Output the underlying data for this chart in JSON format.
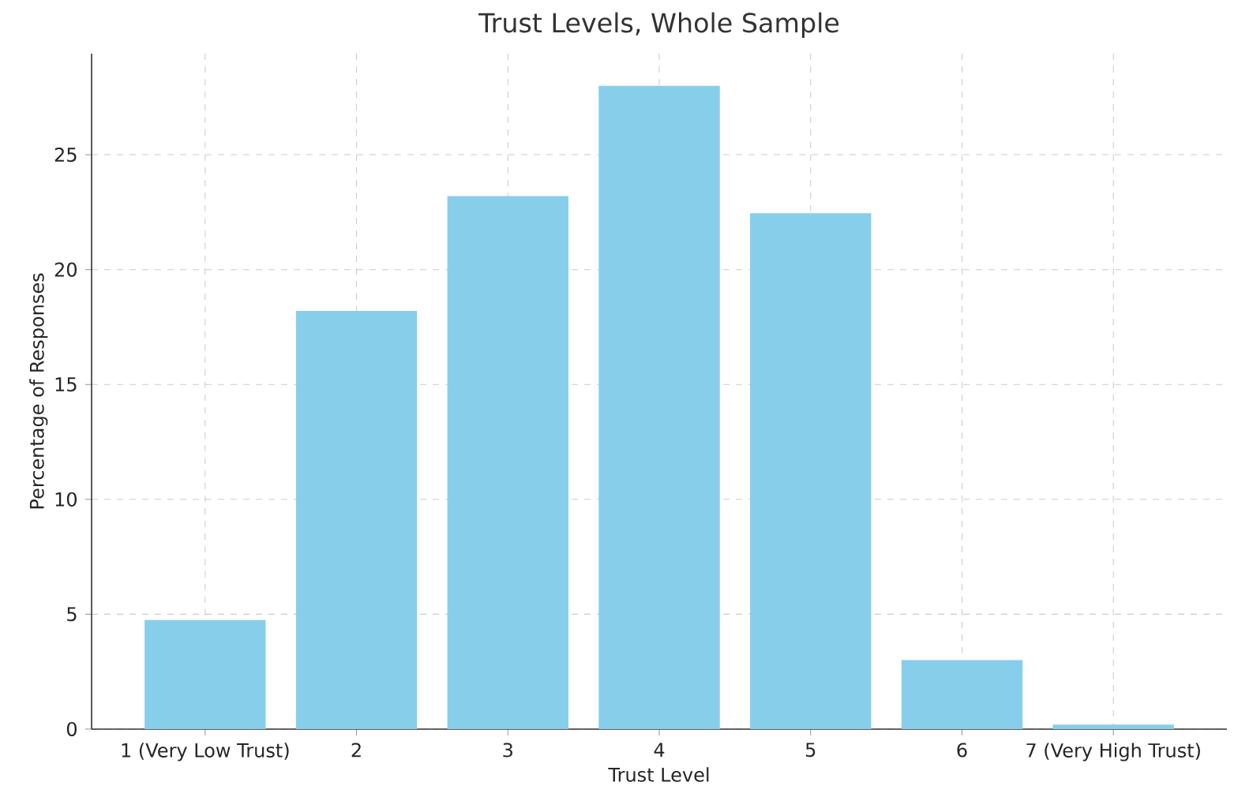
{
  "chart_data": {
    "type": "bar",
    "title": "Trust Levels, Whole Sample",
    "xlabel": "Trust Level",
    "ylabel": "Percentage of Responses",
    "categories": [
      "1 (Very Low Trust)",
      "2",
      "3",
      "4",
      "5",
      "6",
      "7 (Very High Trust)"
    ],
    "values": [
      4.75,
      18.2,
      23.2,
      28.0,
      22.45,
      3.0,
      0.2
    ],
    "color": "#87ceeb",
    "ylim": [
      0,
      29.4
    ],
    "yticks": [
      0,
      5,
      10,
      15,
      20,
      25
    ],
    "grid": true
  }
}
